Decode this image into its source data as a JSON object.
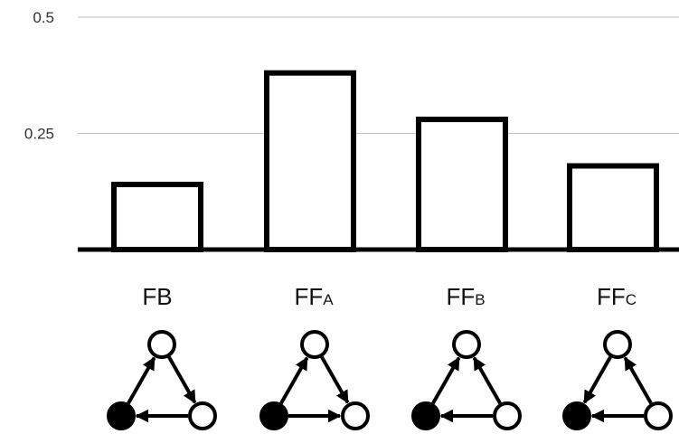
{
  "chart_data": {
    "type": "bar",
    "categories": [
      {
        "main": "FB",
        "sub": ""
      },
      {
        "main": "FF",
        "sub": "A"
      },
      {
        "main": "FF",
        "sub": "B"
      },
      {
        "main": "FF",
        "sub": "C"
      }
    ],
    "values": [
      0.14,
      0.38,
      0.28,
      0.18
    ],
    "ylim": [
      0,
      0.5
    ],
    "yticks": [
      "0.5",
      "0.25"
    ],
    "grid": true,
    "motifs": [
      {
        "edges": [
          [
            "bottom-left",
            "top"
          ],
          [
            "top",
            "bottom-right"
          ],
          [
            "bottom-right",
            "bottom-left"
          ]
        ]
      },
      {
        "edges": [
          [
            "bottom-left",
            "top"
          ],
          [
            "top",
            "bottom-right"
          ],
          [
            "bottom-left",
            "bottom-right"
          ]
        ]
      },
      {
        "edges": [
          [
            "bottom-left",
            "top"
          ],
          [
            "bottom-right",
            "top"
          ],
          [
            "bottom-right",
            "bottom-left"
          ]
        ]
      },
      {
        "edges": [
          [
            "top",
            "bottom-left"
          ],
          [
            "bottom-right",
            "top"
          ],
          [
            "bottom-right",
            "bottom-left"
          ]
        ]
      }
    ],
    "colors": {
      "bar_stroke": "#000000",
      "grid": "#bfbfbf",
      "node_filled": "#000000",
      "node_empty": "#ffffff"
    }
  }
}
